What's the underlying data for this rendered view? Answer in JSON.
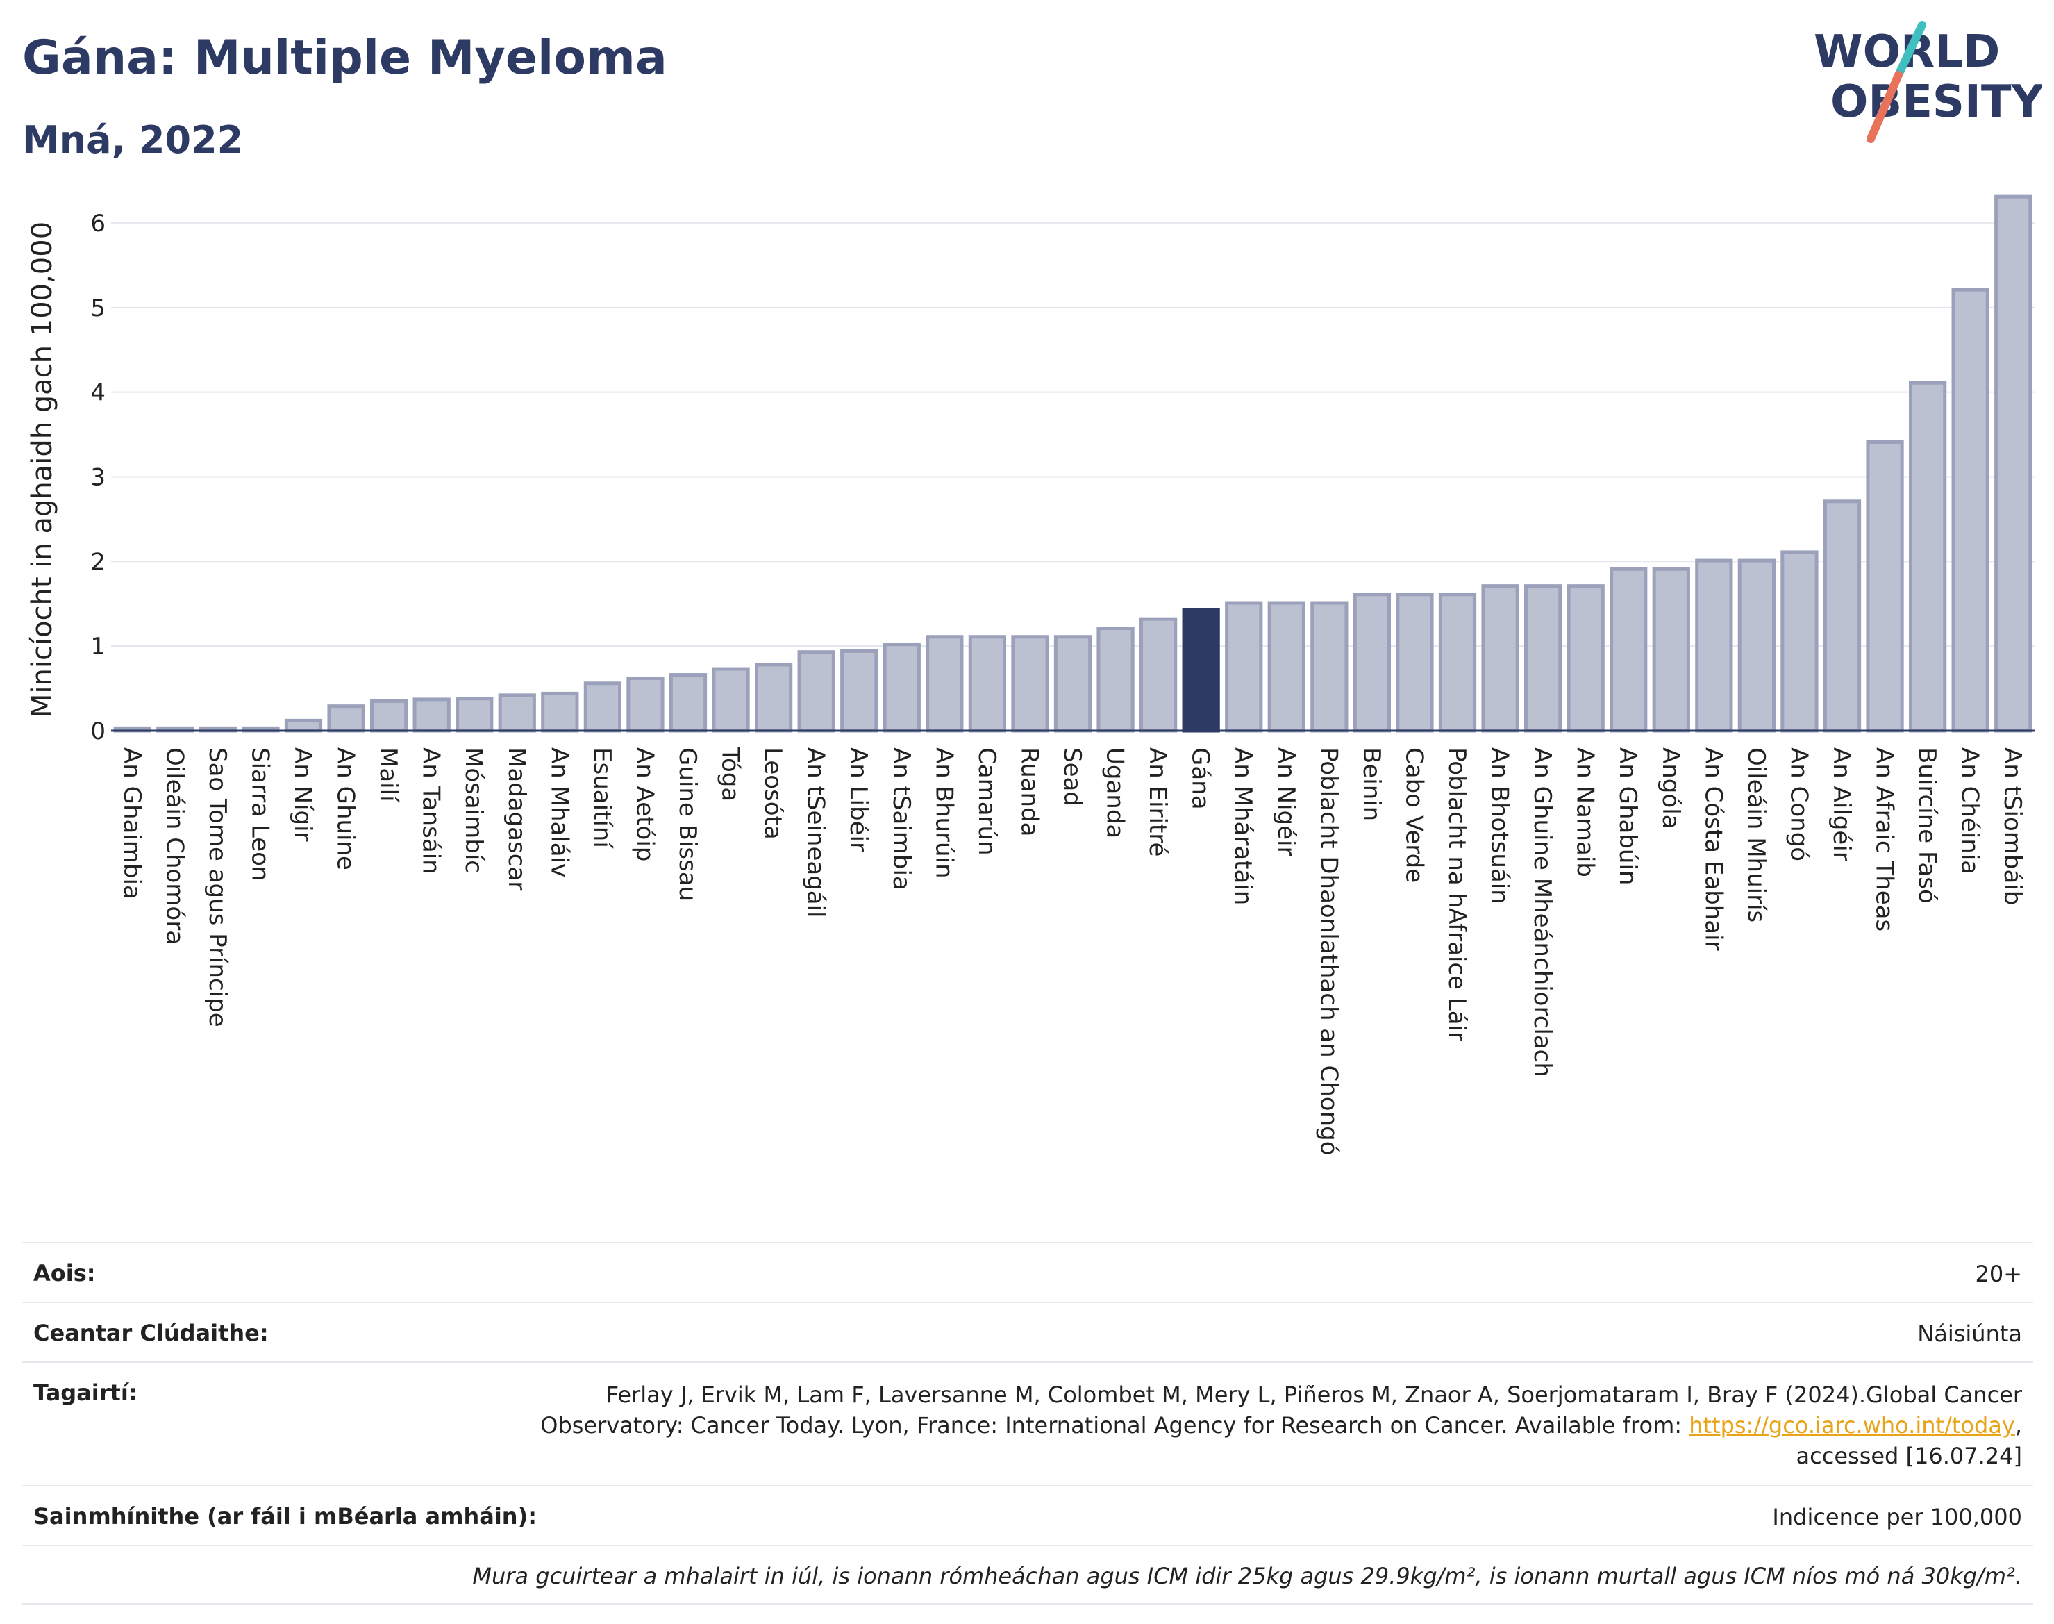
{
  "header": {
    "title": "Gána: Multiple Myeloma",
    "subtitle": "Mná, 2022"
  },
  "logo": {
    "line1": "WORLD",
    "line2": "OBESITY",
    "accent_teal": "#3fbfbf",
    "accent_coral": "#e8735a",
    "text_color": "#2d3a63"
  },
  "colors": {
    "bar_default": "#bcc1d1",
    "bar_default_border": "#9ba1ba",
    "bar_highlight": "#2d3a63",
    "grid": "#e5e7ee",
    "axis": "#2d3a63"
  },
  "chart_data": {
    "type": "bar",
    "title": "Gána: Multiple Myeloma",
    "ylabel": "Minicíocht in aghaidh gach 100,000",
    "xlabel": "",
    "ylim": [
      0,
      6.5
    ],
    "yticks": [
      0,
      1,
      2,
      3,
      4,
      5,
      6
    ],
    "grid": true,
    "highlight": "Gána",
    "categories": [
      "An Ghaimbia",
      "Oileáin Chomóra",
      "Sao Tome agus Príncipe",
      "Siarra Leon",
      "An Nígir",
      "An Ghuine",
      "Mailí",
      "An Tansáin",
      "Mósaimbíc",
      "Madagascar",
      "An Mhaláiv",
      "Esuaitíní",
      "An Aetóip",
      "Guine Bissau",
      "Tóga",
      "Leosóta",
      "An tSeineagáil",
      "An Libéir",
      "An tSaimbia",
      "An Bhurúin",
      "Camarún",
      "Ruanda",
      "Sead",
      "Uganda",
      "An Eiritré",
      "Gána",
      "An Mháratáin",
      "An Nigéir",
      "Poblacht Dhaonlathach an Chongó",
      "Beinin",
      "Cabo Verde",
      "Poblacht na hAfraice Láir",
      "An Bhotsuáin",
      "An Ghuine Mheánchiorclach",
      "An Namaib",
      "An Ghabúin",
      "Angóla",
      "An Cósta Eabhair",
      "Oileáin Mhuirís",
      "An Congó",
      "An Ailgéir",
      "An Afraic Theas",
      "Buircíne Fasó",
      "An Chéinia",
      "An tSiombáib"
    ],
    "values": [
      0.03,
      0.03,
      0.03,
      0.03,
      0.12,
      0.29,
      0.35,
      0.37,
      0.38,
      0.42,
      0.44,
      0.56,
      0.62,
      0.66,
      0.73,
      0.78,
      0.93,
      0.94,
      1.02,
      1.11,
      1.11,
      1.11,
      1.11,
      1.21,
      1.32,
      1.43,
      1.51,
      1.51,
      1.51,
      1.61,
      1.61,
      1.61,
      1.71,
      1.71,
      1.71,
      1.91,
      1.91,
      2.01,
      2.01,
      2.11,
      2.71,
      3.41,
      4.11,
      5.21,
      6.31
    ]
  },
  "info": {
    "age_label": "Aois:",
    "age_value": "20+",
    "coverage_label": "Ceantar Clúdaithe:",
    "coverage_value": "Náisiúnta",
    "refs_label": "Tagairtí:",
    "refs_line1": "Ferlay J, Ervik M, Lam F, Laversanne M, Colombet M, Mery L, Piñeros M, Znaor A, Soerjomataram I, Bray F (2024).Global Cancer",
    "refs_line2_pre": "Observatory: Cancer Today. Lyon, France: International Agency for Research on Cancer. Available from: ",
    "refs_link": "https://gco.iarc.who.int/today",
    "refs_line2_post": ",",
    "refs_line3": "accessed [16.07.24]",
    "definitions_label": "Sainmhínithe (ar fáil i mBéarla amháin):",
    "definitions_value": "Indicence per 100,000",
    "note": "Mura gcuirtear a mhalairt in iúl, is ionann rómheáchan agus ICM idir 25kg agus 29.9kg/m², is ionann murtall agus ICM níos mó ná 30kg/m²."
  }
}
